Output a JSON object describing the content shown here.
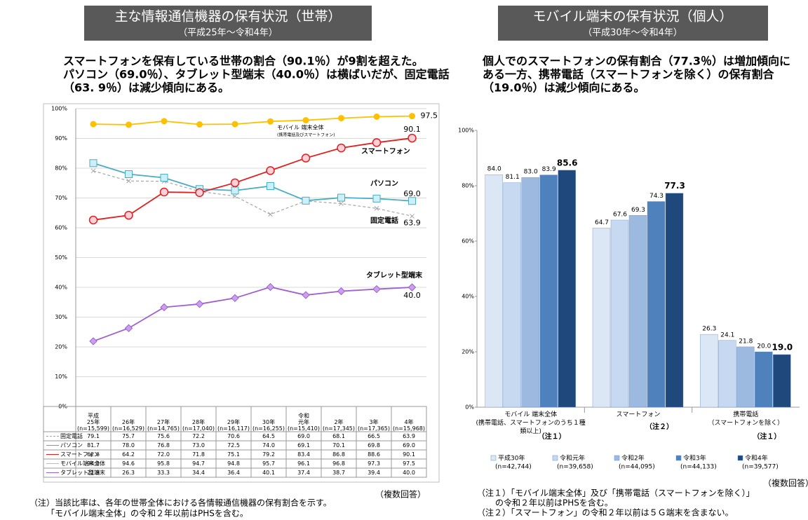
{
  "chart_data": [
    {
      "type": "line",
      "title": "主な情報通信機器の保有状況（世帯）",
      "subtitle": "（平成25年～令和4年）",
      "summary": [
        "スマートフォンを保有している世帯の割合（90.1％）が9割を超えた。",
        "パソコン（69.0％）、タブレット型端末（40.0％）は横ばいだが、固定電話",
        "（63. 9％）は減少傾向にある。"
      ],
      "categories": [
        [
          "平成",
          "25年",
          "(n=15,599)"
        ],
        [
          "26年",
          "(n=16,529)"
        ],
        [
          "27年",
          "(n=14,765)"
        ],
        [
          "28年",
          "(n=17,040)"
        ],
        [
          "29年",
          "(n=16,117)"
        ],
        [
          "30年",
          "(n=16,255)"
        ],
        [
          "令和",
          "元年",
          "(n=15,410)"
        ],
        [
          "2年",
          "(n=17,345)"
        ],
        [
          "3年",
          "(n=17,365)"
        ],
        [
          "4年",
          "(n=15,968)"
        ]
      ],
      "series": [
        {
          "name": "固定電話",
          "color": "#a6a6a6",
          "values": [
            79.1,
            75.7,
            75.6,
            72.2,
            70.6,
            64.5,
            69.0,
            68.1,
            66.5,
            63.9
          ],
          "value_labels": [
            "79.1",
            "75.7",
            "75.6",
            "72.2",
            "70.6",
            "64.5",
            "69.0",
            "68.1",
            "66.5",
            "63.9"
          ]
        },
        {
          "name": "パソコン",
          "color": "#4bacc6",
          "values": [
            81.7,
            78.0,
            76.8,
            73.0,
            72.5,
            74.0,
            69.1,
            70.1,
            69.8,
            69.0
          ],
          "value_labels": [
            "81.7",
            "78.0",
            "76.8",
            "73.0",
            "72.5",
            "74.0",
            "69.1",
            "70.1",
            "69.8",
            "69.0"
          ]
        },
        {
          "name": "スマートフォン",
          "color": "#e02020",
          "values": [
            62.6,
            64.2,
            72.0,
            71.8,
            75.1,
            79.2,
            83.4,
            86.8,
            88.6,
            90.1
          ],
          "value_labels": [
            "62.6",
            "64.2",
            "72.0",
            "71.8",
            "75.1",
            "79.2",
            "83.4",
            "86.8",
            "88.6",
            "90.1"
          ]
        },
        {
          "name": "モバイル端末全体",
          "color": "#ffc000",
          "values": [
            94.8,
            94.6,
            95.8,
            94.7,
            94.8,
            95.7,
            96.1,
            96.8,
            97.3,
            97.5
          ],
          "value_labels": [
            "94.8",
            "94.6",
            "95.8",
            "94.7",
            "94.8",
            "95.7",
            "96.1",
            "96.8",
            "97.3",
            "97.5"
          ]
        },
        {
          "name": "タブレット型端末",
          "color": "#9f5fd0",
          "values": [
            21.9,
            26.3,
            33.3,
            34.4,
            36.4,
            40.1,
            37.4,
            38.7,
            39.4,
            40.0
          ],
          "value_labels": [
            "21.9",
            "26.3",
            "33.3",
            "34.4",
            "36.4",
            "40.1",
            "37.4",
            "38.7",
            "39.4",
            "40.0"
          ]
        }
      ],
      "annotations": [
        "モバイル 端末全体",
        "(携帯電話及びスマートフォン)",
        "スマートフォン",
        "パソコン",
        "固定電話",
        "タブレット型端末"
      ],
      "ylim": [
        0,
        100
      ],
      "yticks": [
        {
          "value": 0,
          "label": "0%"
        },
        {
          "value": 10,
          "label": "10%"
        },
        {
          "value": 20,
          "label": "20%"
        },
        {
          "value": 30,
          "label": "30%"
        },
        {
          "value": 40,
          "label": "40%"
        },
        {
          "value": 50,
          "label": "50%"
        },
        {
          "value": 60,
          "label": "60%"
        },
        {
          "value": 70,
          "label": "70%"
        },
        {
          "value": 80,
          "label": "80%"
        },
        {
          "value": 90,
          "label": "90%"
        },
        {
          "value": 100,
          "label": "100%"
        }
      ],
      "grid": true,
      "note": "（複数回答）",
      "footnotes": [
        "（注）当該比率は、各年の世帯全体における各情報通信機器の保有割合を示す。",
        "「モバイル端末全体」の令和２年以前はPHSを含む。"
      ]
    },
    {
      "type": "bar",
      "title": "モバイル端末の保有状況（個人）",
      "subtitle": "（平成30年～令和4年）",
      "summary": [
        "個人でのスマートフォンの保有割合（77.3％）は増加傾向に",
        "ある一方、携帯電話（スマートフォンを除く）の保有割合",
        "（19.0％）は減少傾向にある。"
      ],
      "categories": [
        [
          "モバイル 端末全体",
          "(携帯電話、スマートフォンのうち１種",
          "類以上)"
        ],
        [
          "スマートフォン"
        ],
        [
          "携帯電話",
          "（スマートフォンを除く）"
        ]
      ],
      "category_notes": [
        "（注１）",
        "（注２）",
        "（注１）"
      ],
      "series": [
        {
          "name": "平成30年",
          "n": "(n=42,744)",
          "color": "#dce7f5",
          "values": [
            84.0,
            64.7,
            26.3
          ],
          "value_labels": [
            "84.0",
            "64.7",
            "26.3"
          ]
        },
        {
          "name": "令和元年",
          "n": "(n=39,658)",
          "color": "#c6d9f1",
          "values": [
            81.1,
            67.6,
            24.1
          ],
          "value_labels": [
            "81.1",
            "67.6",
            "24.1"
          ]
        },
        {
          "name": "令和2年",
          "n": "(n=44,095)",
          "color": "#9cb9df",
          "values": [
            83.0,
            69.3,
            21.8
          ],
          "value_labels": [
            "83.0",
            "69.3",
            "21.8"
          ]
        },
        {
          "name": "令和3年",
          "n": "(n=44,133)",
          "color": "#4f81bd",
          "values": [
            83.9,
            74.3,
            20.0
          ],
          "value_labels": [
            "83.9",
            "74.3",
            "20.0"
          ]
        },
        {
          "name": "令和4年",
          "n": "(n=39,577)",
          "color": "#1f497d",
          "values": [
            85.6,
            77.3,
            19.0
          ],
          "value_labels": [
            "85.6",
            "77.3",
            "19.0"
          ]
        }
      ],
      "ylim": [
        0,
        100
      ],
      "yticks": [
        {
          "value": 0,
          "label": "0%"
        },
        {
          "value": 20,
          "label": "20%"
        },
        {
          "value": 40,
          "label": "40%"
        },
        {
          "value": 60,
          "label": "60%"
        },
        {
          "value": 80,
          "label": "80%"
        },
        {
          "value": 100,
          "label": "100%"
        }
      ],
      "grid": false,
      "note": "（複数回答）",
      "footnotes": [
        "（注１）「モバイル端末全体」及び「携帯電話（スマートフォンを除く）」",
        "の令和２年以前はPHSを含む。",
        "（注２）「スマートフォン」の令和２年以前は５Ｇ端末を含まない。"
      ]
    }
  ]
}
